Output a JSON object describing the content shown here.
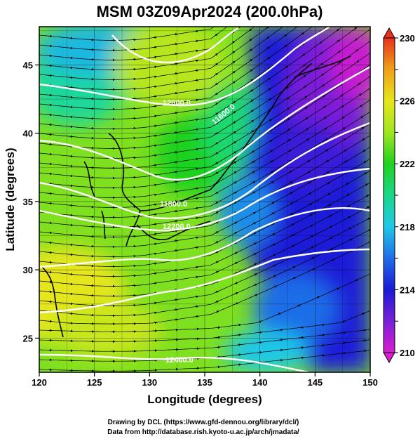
{
  "title": "MSM 03Z09Apr2024 (200.0hPa)",
  "map": {
    "xlabel": "Longitude (degrees)",
    "ylabel": "Latitude  (degrees)",
    "xlim": [
      120,
      150
    ],
    "ylim": [
      22.5,
      47.8
    ],
    "x_ticks": [
      "120",
      "125",
      "130",
      "135",
      "140",
      "145",
      "150"
    ],
    "y_ticks": [
      "25",
      "30",
      "35",
      "40",
      "45"
    ]
  },
  "colorbar": {
    "min": 210,
    "max": 230,
    "ticks": [
      "230",
      "226",
      "222",
      "218",
      "214",
      "210"
    ],
    "colors": {
      "c210": "#d81ed0",
      "c212": "#7a1fd8",
      "c214": "#1a1ad8",
      "c216": "#1f6de8",
      "c218": "#1fc8e8",
      "c220": "#18d88a",
      "c222": "#1fd21f",
      "c224": "#9fe61f",
      "c226": "#e6e61a",
      "c228": "#f0a01a",
      "c230": "#e8321a"
    }
  },
  "contour_labels": [
    "12000.0",
    "12200.0",
    "12400.0",
    "11600.0",
    "11800.0"
  ],
  "contour_values": [
    11600,
    11800,
    12000,
    12200,
    12400
  ],
  "credits": [
    "Drawing by DCL (https://www.gfd-dennou.org/library/dcl/)",
    "Data from http://database.rish.kyoto-u.ac.jp/arch/jmadata/"
  ]
}
